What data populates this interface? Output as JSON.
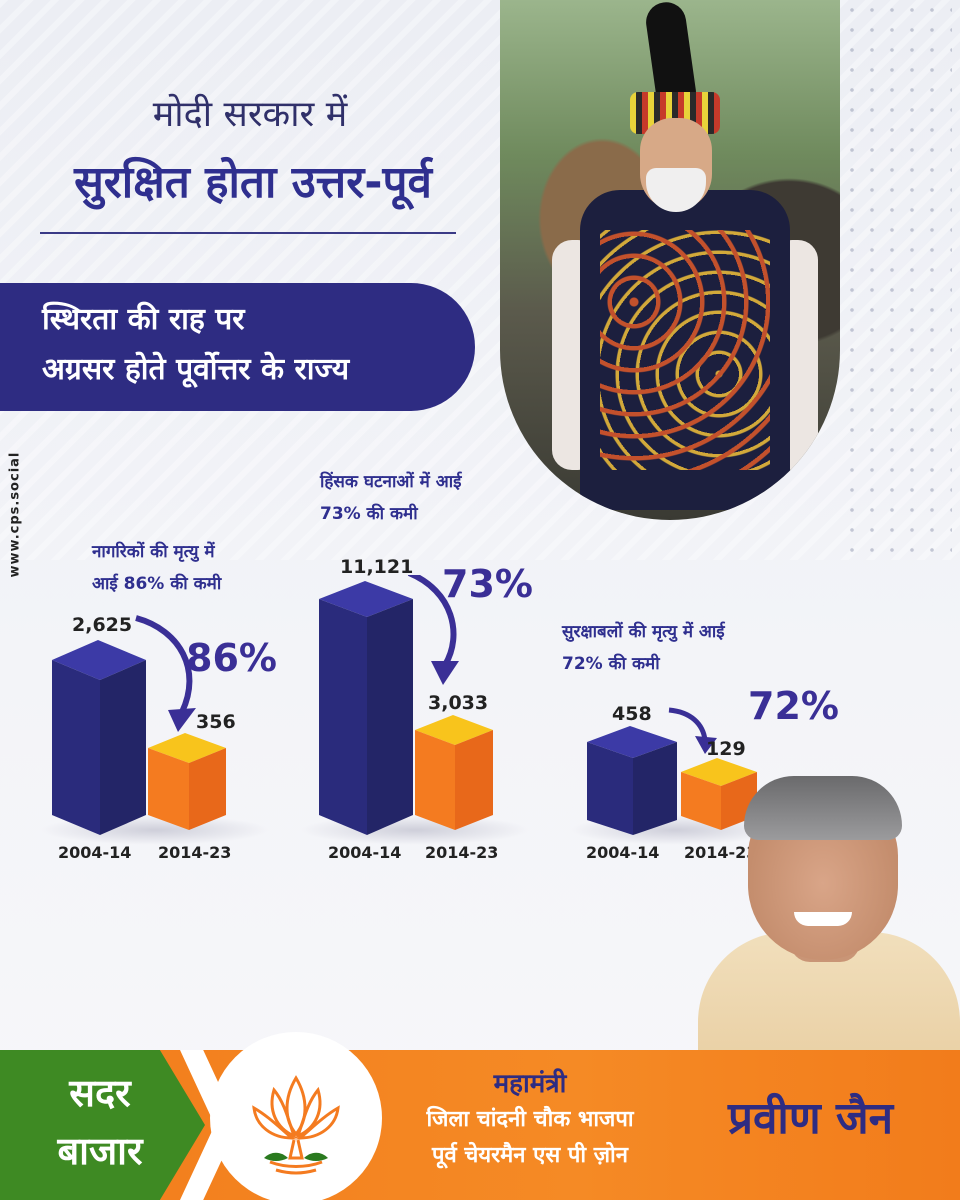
{
  "header": {
    "title_line1": "मोदी सरकार में",
    "title_line2": "सुरक्षित होता उत्तर-पूर्व",
    "subtitle_line1": "स्थिरता की राह पर",
    "subtitle_line2": "अग्रसर होते पूर्वोत्तर के राज्य"
  },
  "watermark": "www.cps.social",
  "charts": [
    {
      "label_line1": "नागरिकों की मृत्यु में",
      "label_line2": "आई 86% की कमी",
      "before_value": "2,625",
      "after_value": "356",
      "percent": "86%",
      "before_period": "2004-14",
      "after_period": "2014-23"
    },
    {
      "label_line1": "हिंसक घटनाओं में आई",
      "label_line2": "73% की कमी",
      "before_value": "11,121",
      "after_value": "3,033",
      "percent": "73%",
      "before_period": "2004-14",
      "after_period": "2014-23"
    },
    {
      "label_line1": "सुरक्षाबलों की मृत्यु में आई",
      "label_line2": "72% की कमी",
      "before_value": "458",
      "after_value": "129",
      "percent": "72%",
      "before_period": "2004-14",
      "after_period": "2014-23"
    }
  ],
  "footer": {
    "place_line1": "सदर",
    "place_line2": "बाजार",
    "designation_line1": "महामंत्री",
    "designation_line2": "जिला चांदनी चौक भाजपा",
    "designation_line3": "पूर्व चेयरमैन एस पी ज़ोन",
    "name": "प्रवीण जैन"
  },
  "colors": {
    "navy": "#2e2c82",
    "bar_before": "#2f2f85",
    "bar_after": "#f47b20",
    "bar_after_top": "#f7c51e",
    "footer_orange": "#f58a25",
    "footer_green": "#3e8a23"
  }
}
